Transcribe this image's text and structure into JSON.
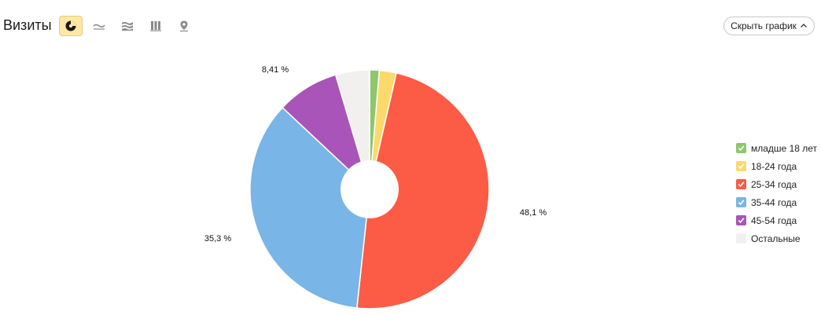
{
  "header": {
    "title": "Визиты",
    "hide_chart_label": "Скрыть график"
  },
  "toolbar": {
    "items": [
      {
        "icon": "pie-chart-icon",
        "active": true
      },
      {
        "icon": "line-chart-icon",
        "active": false
      },
      {
        "icon": "area-chart-icon",
        "active": false
      },
      {
        "icon": "bar-chart-icon",
        "active": false
      },
      {
        "icon": "map-pin-icon",
        "active": false
      }
    ]
  },
  "chart_data": {
    "type": "pie",
    "donut": true,
    "slices": [
      {
        "label": "младше 18 лет",
        "value": 1.3,
        "color": "#8dc66b",
        "data_label": ""
      },
      {
        "label": "18-24 года",
        "value": 2.3,
        "color": "#fcd96b",
        "data_label": ""
      },
      {
        "label": "25-34 года",
        "value": 48.1,
        "color": "#fc5b45",
        "data_label": "48,1 %"
      },
      {
        "label": "35-44 года",
        "value": 35.3,
        "color": "#79b5e6",
        "data_label": "35,3 %"
      },
      {
        "label": "45-54 года",
        "value": 8.41,
        "color": "#a954b8",
        "data_label": "8,41 %"
      },
      {
        "label": "Остальные",
        "value": 4.59,
        "color": "#f1f0ee",
        "data_label": ""
      }
    ],
    "legend_position": "right"
  }
}
